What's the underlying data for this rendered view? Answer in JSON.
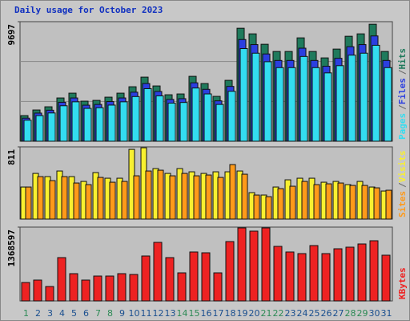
{
  "title": "Daily usage for October 2023",
  "categories": [
    "1",
    "2",
    "3",
    "4",
    "5",
    "6",
    "7",
    "8",
    "9",
    "10",
    "11",
    "12",
    "13",
    "14",
    "15",
    "16",
    "17",
    "18",
    "19",
    "20",
    "21",
    "22",
    "23",
    "24",
    "25",
    "26",
    "27",
    "28",
    "29",
    "30",
    "31"
  ],
  "category_colors": [
    "#2e8b57",
    "#1a4f8f",
    "#1a4f8f",
    "#1a4f8f",
    "#1a4f8f",
    "#1a4f8f",
    "#2e8b57",
    "#2e8b57",
    "#1a4f8f",
    "#1a4f8f",
    "#1a4f8f",
    "#1a4f8f",
    "#1a4f8f",
    "#2e8b57",
    "#2e8b57",
    "#1a4f8f",
    "#1a4f8f",
    "#1a4f8f",
    "#1a4f8f",
    "#1a4f8f",
    "#2e8b57",
    "#2e8b57",
    "#1a4f8f",
    "#1a4f8f",
    "#1a4f8f",
    "#1a4f8f",
    "#1a4f8f",
    "#2e8b57",
    "#2e8b57",
    "#1a4f8f",
    "#1a4f8f"
  ],
  "legend_separator": "/",
  "chart_data": [
    {
      "type": "bar",
      "ylim": [
        0,
        9697
      ],
      "yticks": [
        9697
      ],
      "grid": true,
      "series": [
        {
          "name": "Hits",
          "color": "#1f7a5c",
          "values": [
            2080,
            2535,
            2795,
            3510,
            3900,
            3250,
            3315,
            3575,
            3900,
            4420,
            5200,
            4485,
            3770,
            3835,
            5265,
            4680,
            3640,
            4940,
            9165,
            8710,
            7865,
            7280,
            7280,
            8385,
            7280,
            6760,
            7475,
            8515,
            8710,
            9490,
            7280
          ]
        },
        {
          "name": "Files",
          "color": "#2b3fe0",
          "values": [
            1872,
            2282,
            2516,
            3159,
            3510,
            2925,
            2984,
            3218,
            3510,
            3978,
            4680,
            4037,
            3393,
            3452,
            4739,
            4212,
            3276,
            4446,
            8249,
            7839,
            7079,
            6552,
            6552,
            7547,
            6552,
            6084,
            6728,
            7664,
            7839,
            8541,
            6552
          ]
        },
        {
          "name": "Pages",
          "color": "#33ddf0",
          "values": [
            1706,
            2079,
            2292,
            2878,
            3198,
            2665,
            2718,
            2932,
            3198,
            3624,
            4264,
            3678,
            3091,
            3145,
            4317,
            3838,
            2985,
            4051,
            7515,
            7142,
            6449,
            5970,
            5970,
            6876,
            5970,
            5543,
            6130,
            6982,
            7142,
            7782,
            5970
          ]
        }
      ]
    },
    {
      "type": "bar",
      "ylim": [
        0,
        811
      ],
      "yticks": [
        811
      ],
      "grid": false,
      "series": [
        {
          "name": "Visits",
          "color": "#f8f030",
          "values": [
            360,
            513,
            477,
            540,
            477,
            423,
            522,
            459,
            459,
            783,
            801,
            567,
            513,
            567,
            531,
            513,
            531,
            531,
            540,
            297,
            270,
            360,
            441,
            459,
            459,
            414,
            423,
            387,
            423,
            360,
            315
          ]
        },
        {
          "name": "Sites",
          "color": "#ff9a1a",
          "values": [
            360,
            477,
            432,
            477,
            405,
            387,
            468,
            414,
            423,
            486,
            540,
            549,
            486,
            513,
            486,
            495,
            468,
            612,
            504,
            270,
            252,
            342,
            369,
            423,
            387,
            396,
            405,
            378,
            378,
            351,
            324
          ]
        }
      ]
    },
    {
      "type": "bar",
      "ylim": [
        0,
        1368597
      ],
      "yticks": [
        1368597
      ],
      "grid": false,
      "series": [
        {
          "name": "KBytes",
          "color": "#ee2222",
          "values": [
            342148,
            386776,
            267768,
            803304,
            505784,
            386776,
            461156,
            461156,
            505784,
            490908,
            833056,
            1085948,
            803304,
            520660,
            907436,
            892560,
            520660,
            1100824,
            1353716,
            1294212,
            1353716,
            1011568,
            907436,
            877684,
            1026444,
            877684,
            966940,
            996692,
            1056196,
            1115700,
            847932
          ]
        }
      ]
    }
  ]
}
